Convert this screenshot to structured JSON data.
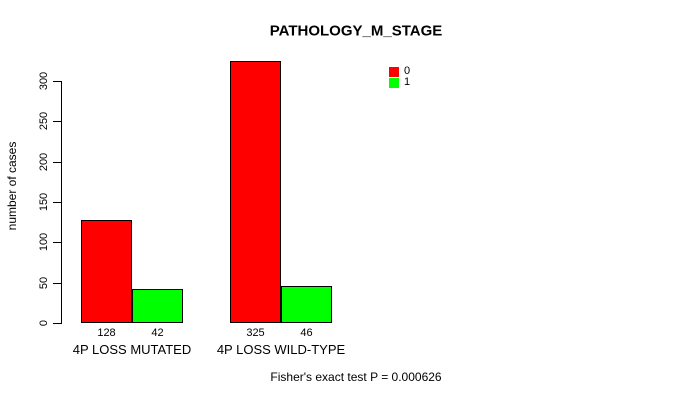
{
  "chart_data": {
    "type": "bar",
    "title": "PATHOLOGY_M_STAGE",
    "xlabel": "",
    "ylabel": "number of cases",
    "categories": [
      "4P LOSS MUTATED",
      "4P LOSS WILD-TYPE"
    ],
    "series": [
      {
        "name": "0",
        "color": "#ff0000",
        "values": [
          128,
          325
        ]
      },
      {
        "name": "1",
        "color": "#00ff00",
        "values": [
          42,
          46
        ]
      }
    ],
    "yticks": [
      0,
      50,
      100,
      150,
      200,
      250,
      300
    ],
    "ylim": [
      0,
      340
    ],
    "grid": false,
    "legend_position": "top-right",
    "bar_borders": "#000000",
    "annotation": "Fisher's exact test P = 0.000626"
  }
}
